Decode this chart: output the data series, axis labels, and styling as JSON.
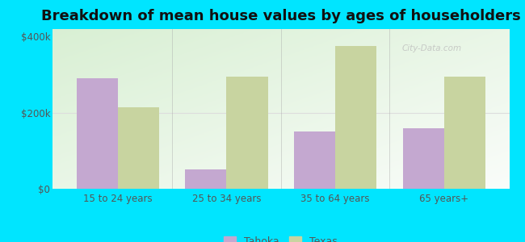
{
  "title": "Breakdown of mean house values by ages of householders",
  "categories": [
    "15 to 24 years",
    "25 to 34 years",
    "35 to 64 years",
    "65 years+"
  ],
  "tahoka_values": [
    290000,
    50000,
    150000,
    160000
  ],
  "texas_values": [
    215000,
    295000,
    375000,
    295000
  ],
  "tahoka_color": "#c4a8d0",
  "texas_color": "#c8d4a0",
  "background_color": "#00e5ff",
  "ylim": [
    0,
    420000
  ],
  "yticks": [
    0,
    200000,
    400000
  ],
  "ytick_labels": [
    "$0",
    "$200k",
    "$400k"
  ],
  "bar_width": 0.38,
  "title_fontsize": 13,
  "legend_labels": [
    "Tahoka",
    "Texas"
  ],
  "watermark": "City-Data.com",
  "grid_color": "#dddddd",
  "separator_color": "#aaaaaa"
}
